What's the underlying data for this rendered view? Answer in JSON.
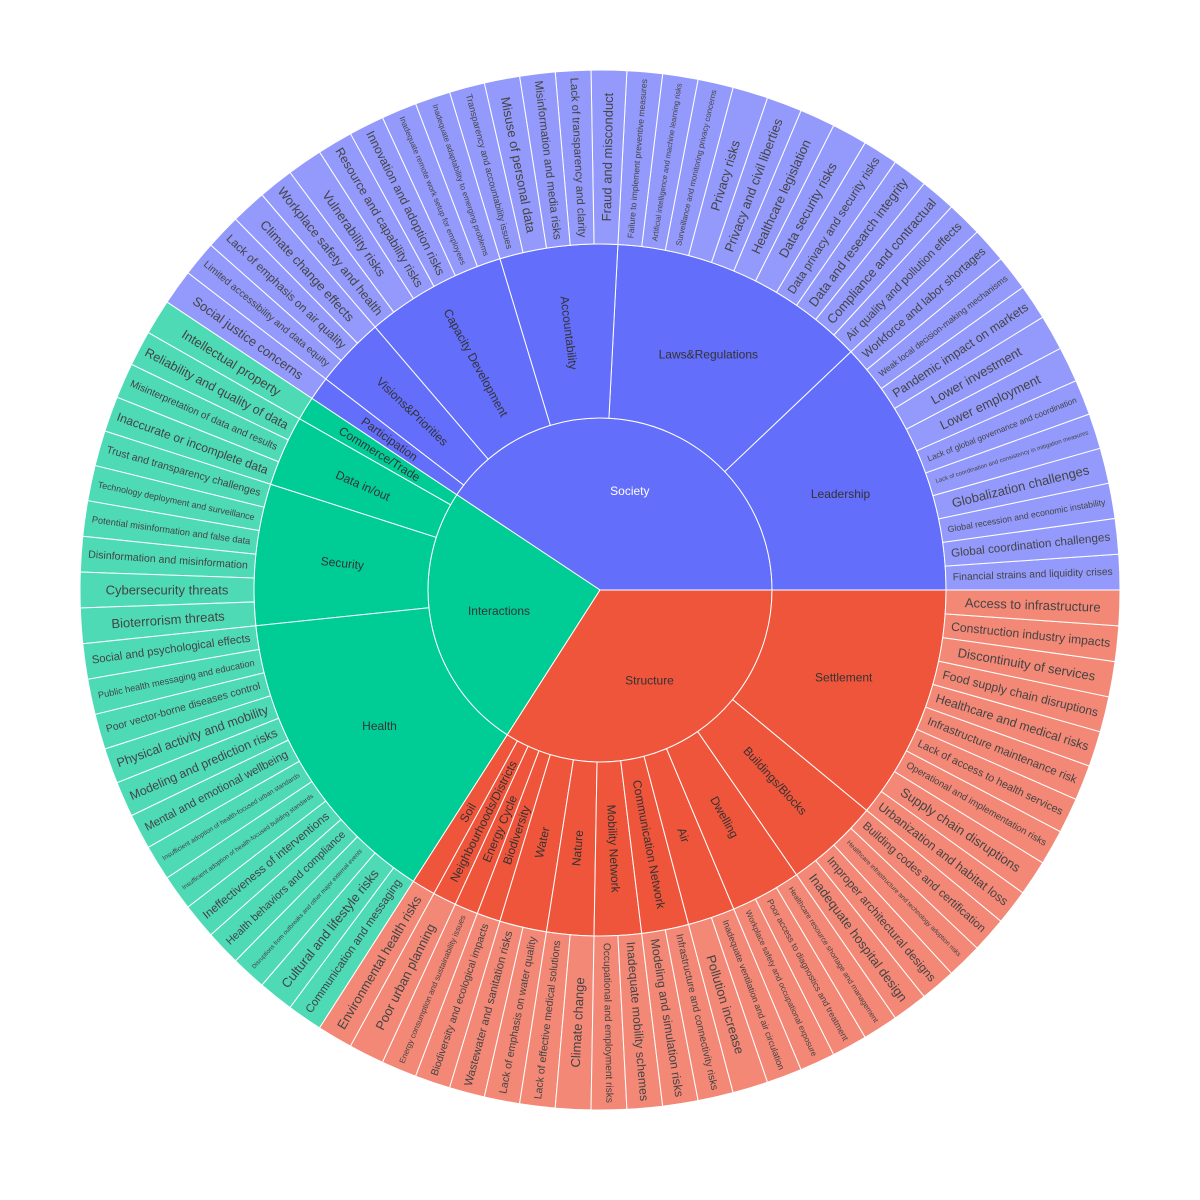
{
  "chart_data": {
    "type": "sunburst",
    "colors": {
      "Society": "#636efa",
      "Structure": "#ef553b",
      "Interactions": "#00cc96"
    },
    "outer_colors": {
      "Society": "#939afb",
      "Structure": "#f38876",
      "Interactions": "#4ddab5"
    },
    "root_order": [
      "Society",
      "Interactions",
      "Structure"
    ],
    "roots": [
      {
        "name": "Society",
        "children": [
          {
            "name": "Leadership",
            "children": [
              {
                "name": "Financial strains and liquidity crises",
                "value": 1
              },
              {
                "name": "Global coordination challenges",
                "value": 1
              },
              {
                "name": "Global recession and economic instability",
                "value": 1
              },
              {
                "name": "Globalization challenges",
                "value": 1
              },
              {
                "name": "Lack of coordination and consistency in mitigation measures",
                "value": 1
              },
              {
                "name": "Lack of global governance and coordination",
                "value": 1
              },
              {
                "name": "Lower employment",
                "value": 1
              },
              {
                "name": "Lower investment",
                "value": 1
              },
              {
                "name": "Pandemic impact on markets",
                "value": 1
              },
              {
                "name": "Weak local decision-making mechanisms",
                "value": 1
              },
              {
                "name": "Workforce and labor shortages",
                "value": 1
              }
            ]
          },
          {
            "name": "Laws&Regulations",
            "children": [
              {
                "name": "Air quality and pollution effects",
                "value": 1
              },
              {
                "name": "Compliance and contractual",
                "value": 1
              },
              {
                "name": "Data and research integrity",
                "value": 1
              },
              {
                "name": "Data privacy and security risks",
                "value": 1
              },
              {
                "name": "Data security risks",
                "value": 1
              },
              {
                "name": "Healthcare legislation",
                "value": 1
              },
              {
                "name": "Privacy and civil liberties",
                "value": 1
              },
              {
                "name": "Privacy risks",
                "value": 1
              },
              {
                "name": "Surveillance and monitoring privacy concerns",
                "value": 1
              },
              {
                "name": "Artificial intelligence and machine learning risks",
                "value": 1
              },
              {
                "name": "Failure to implement preventive measures",
                "value": 1
              }
            ]
          },
          {
            "name": "Accountability",
            "children": [
              {
                "name": "Fraud and misconduct",
                "value": 1
              },
              {
                "name": "Lack of transparency and clarity",
                "value": 1
              },
              {
                "name": "Misinformation and media risks",
                "value": 1
              },
              {
                "name": "Misuse of personal data",
                "value": 1
              },
              {
                "name": "Transparency and accountability issues",
                "value": 1
              }
            ]
          },
          {
            "name": "Capacity Development",
            "children": [
              {
                "name": "Inadequate adaptability to emerging problems",
                "value": 1
              },
              {
                "name": "Inadequate remote work setup for employees",
                "value": 1
              },
              {
                "name": "Innovation and adoption risks",
                "value": 1
              },
              {
                "name": "Resource and capability risks",
                "value": 1
              },
              {
                "name": "Vulnerability risks",
                "value": 1
              },
              {
                "name": "Workplace safety and health",
                "value": 1
              }
            ]
          },
          {
            "name": "Visions&Priorities",
            "children": [
              {
                "name": "Climate change effects",
                "value": 1
              },
              {
                "name": "Lack of emphasis on air quality",
                "value": 1
              },
              {
                "name": "Limited accessibility and data equity",
                "value": 1
              }
            ]
          },
          {
            "name": "Participation",
            "children": [
              {
                "name": "Social justice concerns",
                "value": 1
              }
            ]
          }
        ]
      },
      {
        "name": "Interactions",
        "children": [
          {
            "name": "Commerce/Trade",
            "children": [
              {
                "name": "Intellectual property",
                "value": 1
              }
            ]
          },
          {
            "name": "Data in/out",
            "children": [
              {
                "name": "Reliability and quality of data",
                "value": 1
              },
              {
                "name": "Misinterpretation of data and results",
                "value": 1
              },
              {
                "name": "Inaccurate or incomplete data",
                "value": 1
              }
            ]
          },
          {
            "name": "Security",
            "children": [
              {
                "name": "Trust and transparency challenges",
                "value": 1
              },
              {
                "name": "Technology deployment and surveillance",
                "value": 1
              },
              {
                "name": "Potential misinformation and false data",
                "value": 1
              },
              {
                "name": "Disinformation and misinformation",
                "value": 1
              },
              {
                "name": "Cybersecurity threats",
                "value": 1
              },
              {
                "name": "Bioterrorism threats",
                "value": 1
              }
            ]
          },
          {
            "name": "Health",
            "children": [
              {
                "name": "Social and psychological effects",
                "value": 1
              },
              {
                "name": "Public health messaging and education",
                "value": 1
              },
              {
                "name": "Poor vector-borne diseases control",
                "value": 1
              },
              {
                "name": "Physical activity and mobility",
                "value": 1
              },
              {
                "name": "Modeling and prediction risks",
                "value": 1
              },
              {
                "name": "Mental and emotional wellbeing",
                "value": 1
              },
              {
                "name": "Insufficient adoption of health-focused urban standards",
                "value": 1
              },
              {
                "name": "Insufficient adoption of health-focused building standards",
                "value": 1
              },
              {
                "name": "Ineffectiveness of interventions",
                "value": 1
              },
              {
                "name": "Health behaviors and compliance",
                "value": 1
              },
              {
                "name": "Disruptions from outbreaks and other major external events",
                "value": 1
              },
              {
                "name": "Cultural and lifestyle risks",
                "value": 1
              },
              {
                "name": "Communication and messaging",
                "value": 1
              }
            ]
          }
        ]
      },
      {
        "name": "Structure",
        "children": [
          {
            "name": "Soil",
            "children": [
              {
                "name": "Environmental health risks",
                "value": 1
              }
            ]
          },
          {
            "name": "Neighbourhoods/Districts",
            "children": [
              {
                "name": "Poor urban planning",
                "value": 1
              }
            ]
          },
          {
            "name": "Energy Cycle",
            "children": [
              {
                "name": "Energy consumption and sustainability issues",
                "value": 1
              }
            ]
          },
          {
            "name": "Biodiversity",
            "children": [
              {
                "name": "Biodiversity and ecological impacts",
                "value": 1
              }
            ]
          },
          {
            "name": "Water",
            "children": [
              {
                "name": "Wastewater and sanitation risks",
                "value": 1
              },
              {
                "name": "Lack of emphasis on water quality",
                "value": 1
              }
            ]
          },
          {
            "name": "Nature",
            "children": [
              {
                "name": "Lack of effective medical solutions",
                "value": 1
              },
              {
                "name": "Climate change",
                "value": 1
              }
            ]
          },
          {
            "name": "Mobility Network",
            "children": [
              {
                "name": "Occupational and employment risks",
                "value": 1
              },
              {
                "name": "Inadequate mobility schemes",
                "value": 1
              }
            ]
          },
          {
            "name": "Communication Network",
            "children": [
              {
                "name": "Modeling and simulation risks",
                "value": 1
              },
              {
                "name": "Infrastructure and connectivity risks",
                "value": 1
              }
            ]
          },
          {
            "name": "Air",
            "children": [
              {
                "name": "Pollution increase",
                "value": 1
              },
              {
                "name": "Inadequate ventilation and air circulation",
                "value": 1
              }
            ]
          },
          {
            "name": "Dwelling",
            "children": [
              {
                "name": "Workplace safety and occupational exposure",
                "value": 1
              },
              {
                "name": "Poor access to diagnostics and treatment",
                "value": 1
              },
              {
                "name": "Healthcare resource shortage and management",
                "value": 1
              }
            ]
          },
          {
            "name": "Buildings/Blocks",
            "children": [
              {
                "name": "Inadequate hospital design",
                "value": 1
              },
              {
                "name": "Improper architectural designs",
                "value": 1
              },
              {
                "name": "Healthcare infrastructure and technology adoption risks",
                "value": 1
              },
              {
                "name": "Building codes and certification",
                "value": 1
              }
            ]
          },
          {
            "name": "Settlement",
            "children": [
              {
                "name": "Urbanization and habitat loss",
                "value": 1
              },
              {
                "name": "Supply chain disruptions",
                "value": 1
              },
              {
                "name": "Operational and implementation risks",
                "value": 1
              },
              {
                "name": "Lack of access to health services",
                "value": 1
              },
              {
                "name": "Infrastructure maintenance risk",
                "value": 1
              },
              {
                "name": "Healthcare and medical risks",
                "value": 1
              },
              {
                "name": "Food supply chain disruptions",
                "value": 1
              },
              {
                "name": "Discontinuity of services",
                "value": 1
              },
              {
                "name": "Construction industry impacts",
                "value": 1
              },
              {
                "name": "Access to infrastructure",
                "value": 1
              }
            ]
          }
        ]
      }
    ]
  }
}
